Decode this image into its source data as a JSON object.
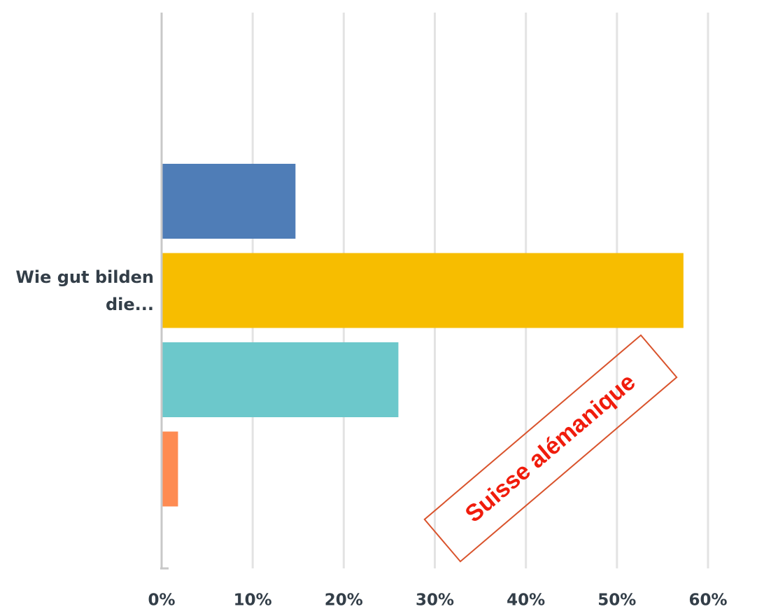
{
  "chart_data": {
    "type": "bar",
    "orientation": "horizontal",
    "categories": [
      "Wie gut bilden die..."
    ],
    "series": [
      {
        "color": "#4f7db7",
        "values": [
          14.7
        ]
      },
      {
        "color": "#f7bd00",
        "values": [
          57.3
        ]
      },
      {
        "color": "#6cc8cb",
        "values": [
          26.0
        ]
      },
      {
        "color": "#fe8b52",
        "values": [
          1.8
        ]
      }
    ],
    "xlim": [
      0,
      60
    ],
    "xticks": [
      {
        "value": 0,
        "label": "0%"
      },
      {
        "value": 10,
        "label": "10%"
      },
      {
        "value": 20,
        "label": "20%"
      },
      {
        "value": 30,
        "label": "30%"
      },
      {
        "value": 40,
        "label": "40%"
      },
      {
        "value": 50,
        "label": "50%"
      },
      {
        "value": 60,
        "label": "60%"
      }
    ],
    "grid": true,
    "annotation": "Suisse alémanique"
  }
}
